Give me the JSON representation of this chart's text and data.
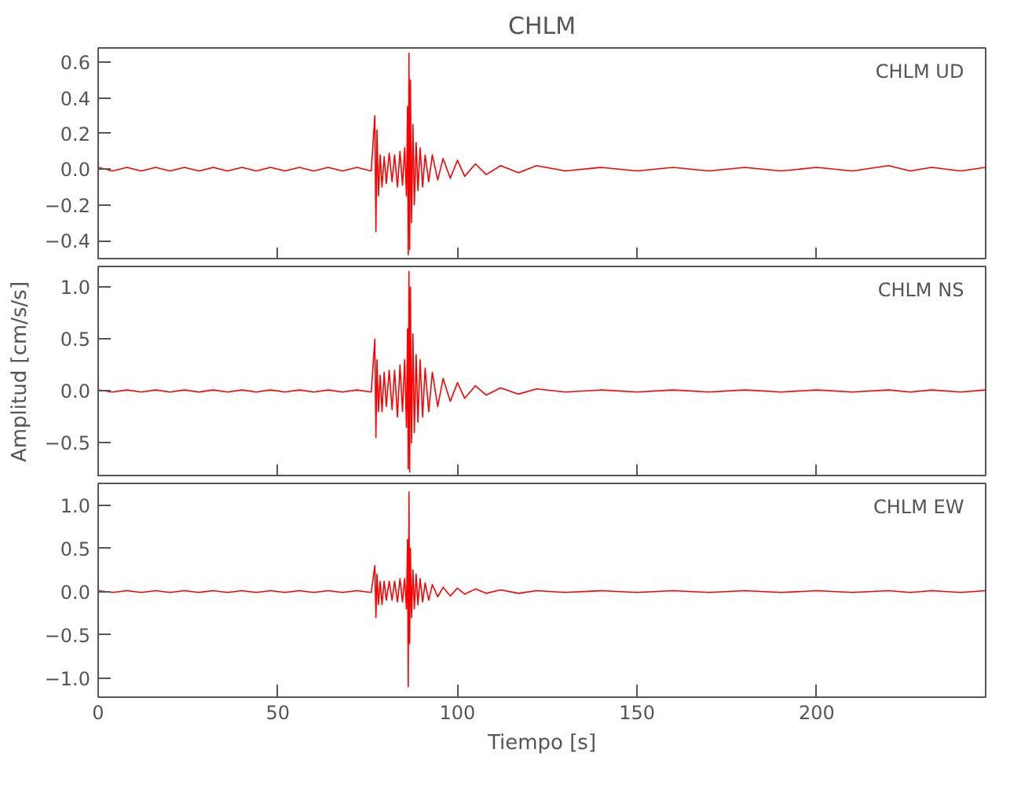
{
  "chart_data": [
    {
      "type": "line",
      "title": "CHLM",
      "annotations": [
        "CHLM  UD"
      ],
      "tick_labels": "y",
      "xlim": [
        0,
        247
      ],
      "ylim": [
        -0.51,
        0.68
      ],
      "xticks": [
        0,
        50,
        100,
        150,
        200
      ],
      "yticks": [
        {
          "value": -0.4,
          "label": "−0.4"
        },
        {
          "value": -0.2,
          "label": "−0.2"
        },
        {
          "value": 0,
          "label": "0.0"
        },
        {
          "value": 0.2,
          "label": "0.2"
        },
        {
          "value": 0.4,
          "label": "0.4"
        },
        {
          "value": 0.6,
          "label": "0.6"
        }
      ],
      "x": [
        0,
        4,
        8,
        12,
        16,
        20,
        24,
        28,
        32,
        36,
        40,
        44,
        48,
        52,
        56,
        60,
        64,
        68,
        72,
        76,
        77,
        77.3,
        77.6,
        78,
        78.5,
        79,
        79.6,
        80.2,
        81,
        81.8,
        82.5,
        83.3,
        84,
        84.7,
        85.3,
        85.8,
        86.1,
        86.3,
        86.5,
        86.7,
        86.9,
        87.2,
        87.6,
        88,
        88.5,
        89,
        89.6,
        90.3,
        91,
        92,
        93,
        94.5,
        96,
        98,
        100,
        102,
        105,
        108,
        112,
        117,
        122,
        130,
        140,
        150,
        160,
        170,
        180,
        190,
        200,
        210,
        220,
        226,
        232,
        240,
        247
      ],
      "series": [
        {
          "color": "#ff0000",
          "values": [
            0.01,
            -0.01,
            0.01,
            -0.01,
            0.01,
            -0.01,
            0.01,
            -0.01,
            0.01,
            -0.01,
            0.01,
            -0.01,
            0.01,
            -0.01,
            0.01,
            -0.01,
            0.01,
            -0.01,
            0.01,
            -0.01,
            0.3,
            -0.35,
            0.22,
            -0.15,
            0.08,
            -0.1,
            0.07,
            -0.08,
            0.09,
            -0.07,
            0.08,
            -0.1,
            0.1,
            -0.09,
            0.12,
            -0.15,
            0.35,
            -0.48,
            0.65,
            -0.45,
            0.5,
            -0.3,
            0.25,
            -0.2,
            0.15,
            -0.12,
            0.12,
            -0.1,
            0.08,
            -0.07,
            0.08,
            -0.06,
            0.06,
            -0.05,
            0.05,
            -0.04,
            0.03,
            -0.03,
            0.02,
            -0.02,
            0.02,
            -0.01,
            0.01,
            -0.01,
            0.01,
            -0.01,
            0.01,
            -0.01,
            0.01,
            -0.01,
            0.02,
            -0.01,
            0.01,
            -0.01,
            0.01
          ]
        }
      ]
    },
    {
      "type": "line",
      "ylabel": "Amplitud [cm/s/s]",
      "annotations": [
        "CHLM  NS"
      ],
      "tick_labels": "y",
      "xlim": [
        0,
        247
      ],
      "ylim": [
        -0.83,
        1.2
      ],
      "xticks": [
        0,
        50,
        100,
        150,
        200
      ],
      "yticks": [
        {
          "value": -0.5,
          "label": "−0.5"
        },
        {
          "value": 0,
          "label": "0.0"
        },
        {
          "value": 0.5,
          "label": "0.5"
        },
        {
          "value": 1,
          "label": "1.0"
        }
      ],
      "x": [
        0,
        4,
        8,
        12,
        16,
        20,
        24,
        28,
        32,
        36,
        40,
        44,
        48,
        52,
        56,
        60,
        64,
        68,
        72,
        76,
        77,
        77.3,
        77.6,
        78,
        78.5,
        79,
        79.6,
        80.2,
        81,
        81.8,
        82.5,
        83.3,
        84,
        84.7,
        85.3,
        85.8,
        86.1,
        86.3,
        86.5,
        86.7,
        86.9,
        87.2,
        87.6,
        88,
        88.5,
        89,
        89.6,
        90.3,
        91,
        92,
        93,
        94.5,
        96,
        98,
        100,
        102,
        105,
        108,
        112,
        117,
        122,
        130,
        140,
        150,
        160,
        170,
        180,
        190,
        200,
        210,
        220,
        226,
        232,
        240,
        247
      ],
      "series": [
        {
          "color": "#ff0000",
          "values": [
            0.01,
            -0.01,
            0.01,
            -0.01,
            0.01,
            -0.01,
            0.01,
            -0.01,
            0.01,
            -0.01,
            0.01,
            -0.01,
            0.01,
            -0.01,
            0.01,
            -0.01,
            0.01,
            -0.01,
            0.01,
            -0.01,
            0.5,
            -0.45,
            0.3,
            -0.2,
            0.15,
            -0.2,
            0.18,
            -0.15,
            0.2,
            -0.18,
            0.2,
            -0.25,
            0.25,
            -0.2,
            0.3,
            -0.35,
            0.6,
            -0.75,
            1.15,
            -0.78,
            1.0,
            -0.5,
            0.55,
            -0.4,
            0.35,
            -0.3,
            0.3,
            -0.25,
            0.22,
            -0.2,
            0.18,
            -0.15,
            0.12,
            -0.1,
            0.08,
            -0.07,
            0.05,
            -0.04,
            0.03,
            -0.03,
            0.02,
            -0.01,
            0.01,
            -0.01,
            0.01,
            -0.01,
            0.01,
            -0.01,
            0.01,
            -0.01,
            0.01,
            -0.01,
            0.01,
            -0.01,
            0.01
          ]
        }
      ]
    },
    {
      "type": "line",
      "xlabel": "Tiempo [s]",
      "annotations": [
        "CHLM  EW"
      ],
      "xlim": [
        0,
        247
      ],
      "ylim": [
        -1.22,
        1.25
      ],
      "xticks": [
        0,
        50,
        100,
        150,
        200
      ],
      "yticks": [
        {
          "value": -1,
          "label": "−1.0"
        },
        {
          "value": -0.5,
          "label": "−0.5"
        },
        {
          "value": 0,
          "label": "0.0"
        },
        {
          "value": 0.5,
          "label": "0.5"
        },
        {
          "value": 1,
          "label": "1.0"
        }
      ],
      "x": [
        0,
        4,
        8,
        12,
        16,
        20,
        24,
        28,
        32,
        36,
        40,
        44,
        48,
        52,
        56,
        60,
        64,
        68,
        72,
        76,
        77,
        77.3,
        77.6,
        78,
        78.5,
        79,
        79.6,
        80.2,
        81,
        81.8,
        82.5,
        83.3,
        84,
        84.7,
        85.3,
        85.8,
        86.1,
        86.3,
        86.5,
        86.7,
        86.9,
        87.2,
        87.6,
        88,
        88.5,
        89,
        89.6,
        90.3,
        91,
        92,
        93,
        94.5,
        96,
        98,
        100,
        102,
        105,
        108,
        112,
        117,
        122,
        130,
        140,
        150,
        160,
        170,
        180,
        190,
        200,
        210,
        220,
        226,
        232,
        240,
        247
      ],
      "series": [
        {
          "color": "#ff0000",
          "values": [
            0.01,
            -0.01,
            0.01,
            -0.01,
            0.01,
            -0.01,
            0.01,
            -0.01,
            0.01,
            -0.01,
            0.01,
            -0.01,
            0.01,
            -0.01,
            0.01,
            -0.01,
            0.01,
            -0.01,
            0.01,
            -0.01,
            0.3,
            -0.3,
            0.2,
            -0.15,
            0.12,
            -0.15,
            0.12,
            -0.1,
            0.12,
            -0.1,
            0.12,
            -0.12,
            0.15,
            -0.12,
            0.15,
            -0.2,
            0.6,
            -1.1,
            1.15,
            -0.6,
            0.5,
            -0.3,
            0.25,
            -0.2,
            0.2,
            -0.15,
            0.15,
            -0.12,
            0.1,
            -0.1,
            0.08,
            -0.06,
            0.05,
            -0.05,
            0.04,
            -0.03,
            0.03,
            -0.02,
            0.02,
            -0.02,
            0.01,
            -0.01,
            0.01,
            -0.01,
            0.01,
            -0.01,
            0.01,
            -0.01,
            0.01,
            -0.01,
            0.01,
            -0.01,
            0.01,
            -0.01,
            0.01
          ]
        }
      ]
    }
  ]
}
